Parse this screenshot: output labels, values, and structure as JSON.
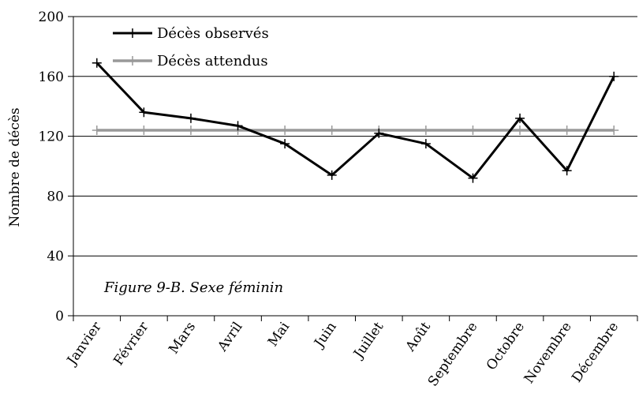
{
  "chart_data": {
    "type": "line",
    "title": "",
    "caption": "Figure 9-B. Sexe féminin",
    "xlabel": "",
    "ylabel": "Nombre de décès",
    "ylim": [
      0,
      200
    ],
    "yticks": [
      0,
      40,
      80,
      120,
      160,
      200
    ],
    "categories": [
      "Janvier",
      "Février",
      "Mars",
      "Avril",
      "Mai",
      "Juin",
      "Juillet",
      "Août",
      "Septembre",
      "Octobre",
      "Novembre",
      "Décembre"
    ],
    "grid": "horizontal",
    "legend_position": "top-left",
    "series": [
      {
        "name": "Décès observés",
        "color": "#000000",
        "marker": "plus",
        "values": [
          169,
          136,
          132,
          127,
          115,
          94,
          122,
          115,
          92,
          132,
          97,
          160
        ]
      },
      {
        "name": "Décès attendus",
        "color": "#999999",
        "marker": "plus",
        "values": [
          124,
          124,
          124,
          124,
          124,
          124,
          124,
          124,
          124,
          124,
          124,
          124
        ]
      }
    ]
  }
}
